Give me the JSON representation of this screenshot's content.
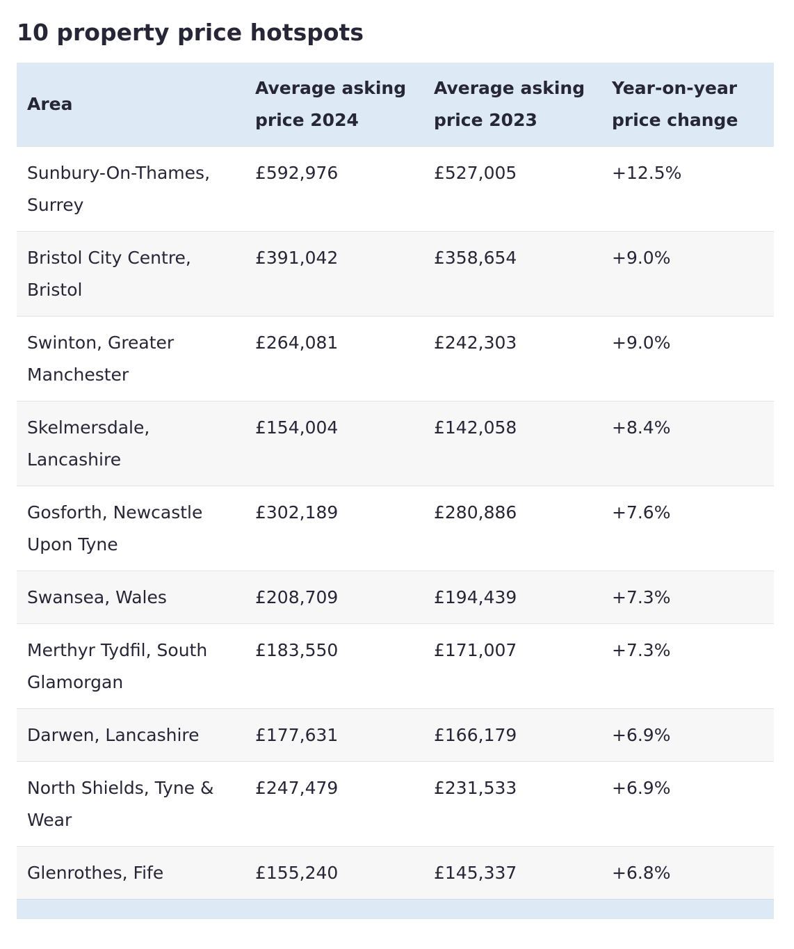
{
  "title": "10 property price hotspots",
  "table": {
    "headers": [
      "Area",
      "Average asking price 2024",
      "Average asking price 2023",
      "Year-on-year price change"
    ],
    "rows": [
      [
        "Sunbury-On-Thames, Surrey",
        "£592,976",
        "£527,005",
        "+12.5%"
      ],
      [
        "Bristol City Centre, Bristol",
        "£391,042",
        "£358,654",
        "+9.0%"
      ],
      [
        "Swinton, Greater Manchester",
        "£264,081",
        "£242,303",
        "+9.0%"
      ],
      [
        "Skelmersdale, Lancashire",
        "£154,004",
        "£142,058",
        "+8.4%"
      ],
      [
        "Gosforth, Newcastle Upon Tyne",
        "£302,189",
        "£280,886",
        "+7.6%"
      ],
      [
        "Swansea, Wales",
        "£208,709",
        "£194,439",
        "+7.3%"
      ],
      [
        "Merthyr Tydfil, South Glamorgan",
        "£183,550",
        "£171,007",
        "+7.3%"
      ],
      [
        "Darwen, Lancashire",
        "£177,631",
        "£166,179",
        "+6.9%"
      ],
      [
        "North Shields, Tyne & Wear",
        "£247,479",
        "£231,533",
        "+6.9%"
      ],
      [
        "Glenrothes, Fife",
        "£155,240",
        "£145,337",
        "+6.8%"
      ]
    ]
  }
}
